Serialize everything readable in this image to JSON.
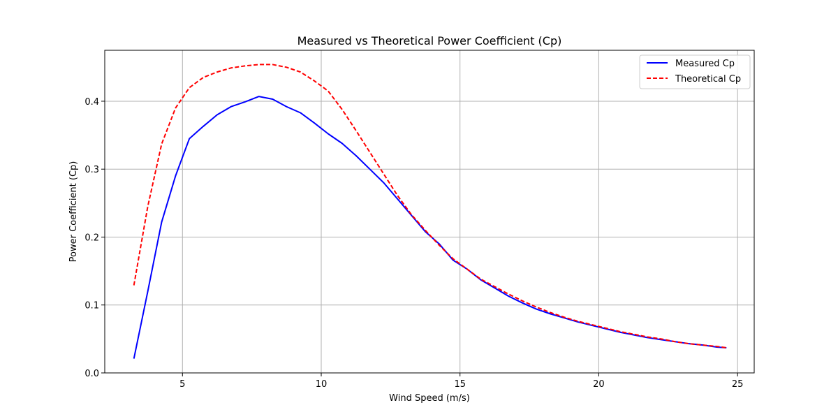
{
  "chart_data": {
    "type": "line",
    "title": "Measured vs Theoretical Power Coefficient (Cp)",
    "xlabel": "Wind Speed (m/s)",
    "ylabel": "Power Coefficient (Cp)",
    "xlim": [
      2.2,
      25.6
    ],
    "ylim": [
      0.0,
      0.475
    ],
    "xticks": [
      5,
      10,
      15,
      20,
      25
    ],
    "yticks": [
      0.0,
      0.1,
      0.2,
      0.3,
      0.4
    ],
    "ytick_labels": [
      "0.0",
      "0.1",
      "0.2",
      "0.3",
      "0.4"
    ],
    "grid": true,
    "legend_position": "top-right",
    "series": [
      {
        "name": "Measured Cp",
        "color": "#0000ff",
        "style": "solid",
        "x": [
          3.25,
          3.75,
          4.25,
          4.75,
          5.25,
          5.75,
          6.25,
          6.75,
          7.25,
          7.75,
          8.25,
          8.75,
          9.25,
          9.75,
          10.25,
          10.75,
          11.25,
          11.75,
          12.25,
          12.75,
          13.25,
          13.75,
          14.25,
          14.75,
          15.25,
          15.75,
          16.25,
          16.75,
          17.25,
          17.75,
          18.25,
          18.75,
          19.25,
          19.75,
          20.25,
          20.75,
          21.25,
          21.75,
          22.25,
          22.75,
          23.25,
          23.75,
          24.25,
          24.6
        ],
        "values": [
          0.021,
          0.12,
          0.222,
          0.29,
          0.345,
          0.363,
          0.38,
          0.392,
          0.399,
          0.407,
          0.403,
          0.392,
          0.383,
          0.368,
          0.352,
          0.338,
          0.32,
          0.3,
          0.28,
          0.256,
          0.232,
          0.208,
          0.19,
          0.166,
          0.153,
          0.137,
          0.125,
          0.113,
          0.103,
          0.094,
          0.087,
          0.081,
          0.075,
          0.07,
          0.065,
          0.06,
          0.056,
          0.052,
          0.049,
          0.046,
          0.043,
          0.041,
          0.038,
          0.037
        ]
      },
      {
        "name": "Theoretical Cp",
        "color": "#ff0000",
        "style": "dashed",
        "x": [
          3.25,
          3.75,
          4.25,
          4.75,
          5.25,
          5.75,
          6.25,
          6.75,
          7.25,
          7.75,
          8.25,
          8.75,
          9.25,
          9.75,
          10.25,
          10.75,
          11.25,
          11.75,
          12.25,
          12.75,
          13.25,
          13.75,
          14.25,
          14.75,
          15.25,
          15.75,
          16.25,
          16.75,
          17.25,
          17.75,
          18.25,
          18.75,
          19.25,
          19.75,
          20.25,
          20.75,
          21.25,
          21.75,
          22.25,
          22.75,
          23.25,
          23.75,
          24.25,
          24.6
        ],
        "values": [
          0.129,
          0.245,
          0.337,
          0.39,
          0.42,
          0.435,
          0.443,
          0.449,
          0.452,
          0.454,
          0.454,
          0.45,
          0.443,
          0.43,
          0.415,
          0.388,
          0.357,
          0.325,
          0.293,
          0.261,
          0.233,
          0.21,
          0.188,
          0.168,
          0.153,
          0.138,
          0.127,
          0.116,
          0.106,
          0.097,
          0.089,
          0.082,
          0.076,
          0.071,
          0.066,
          0.061,
          0.057,
          0.053,
          0.05,
          0.046,
          0.043,
          0.041,
          0.039,
          0.037
        ]
      }
    ]
  }
}
